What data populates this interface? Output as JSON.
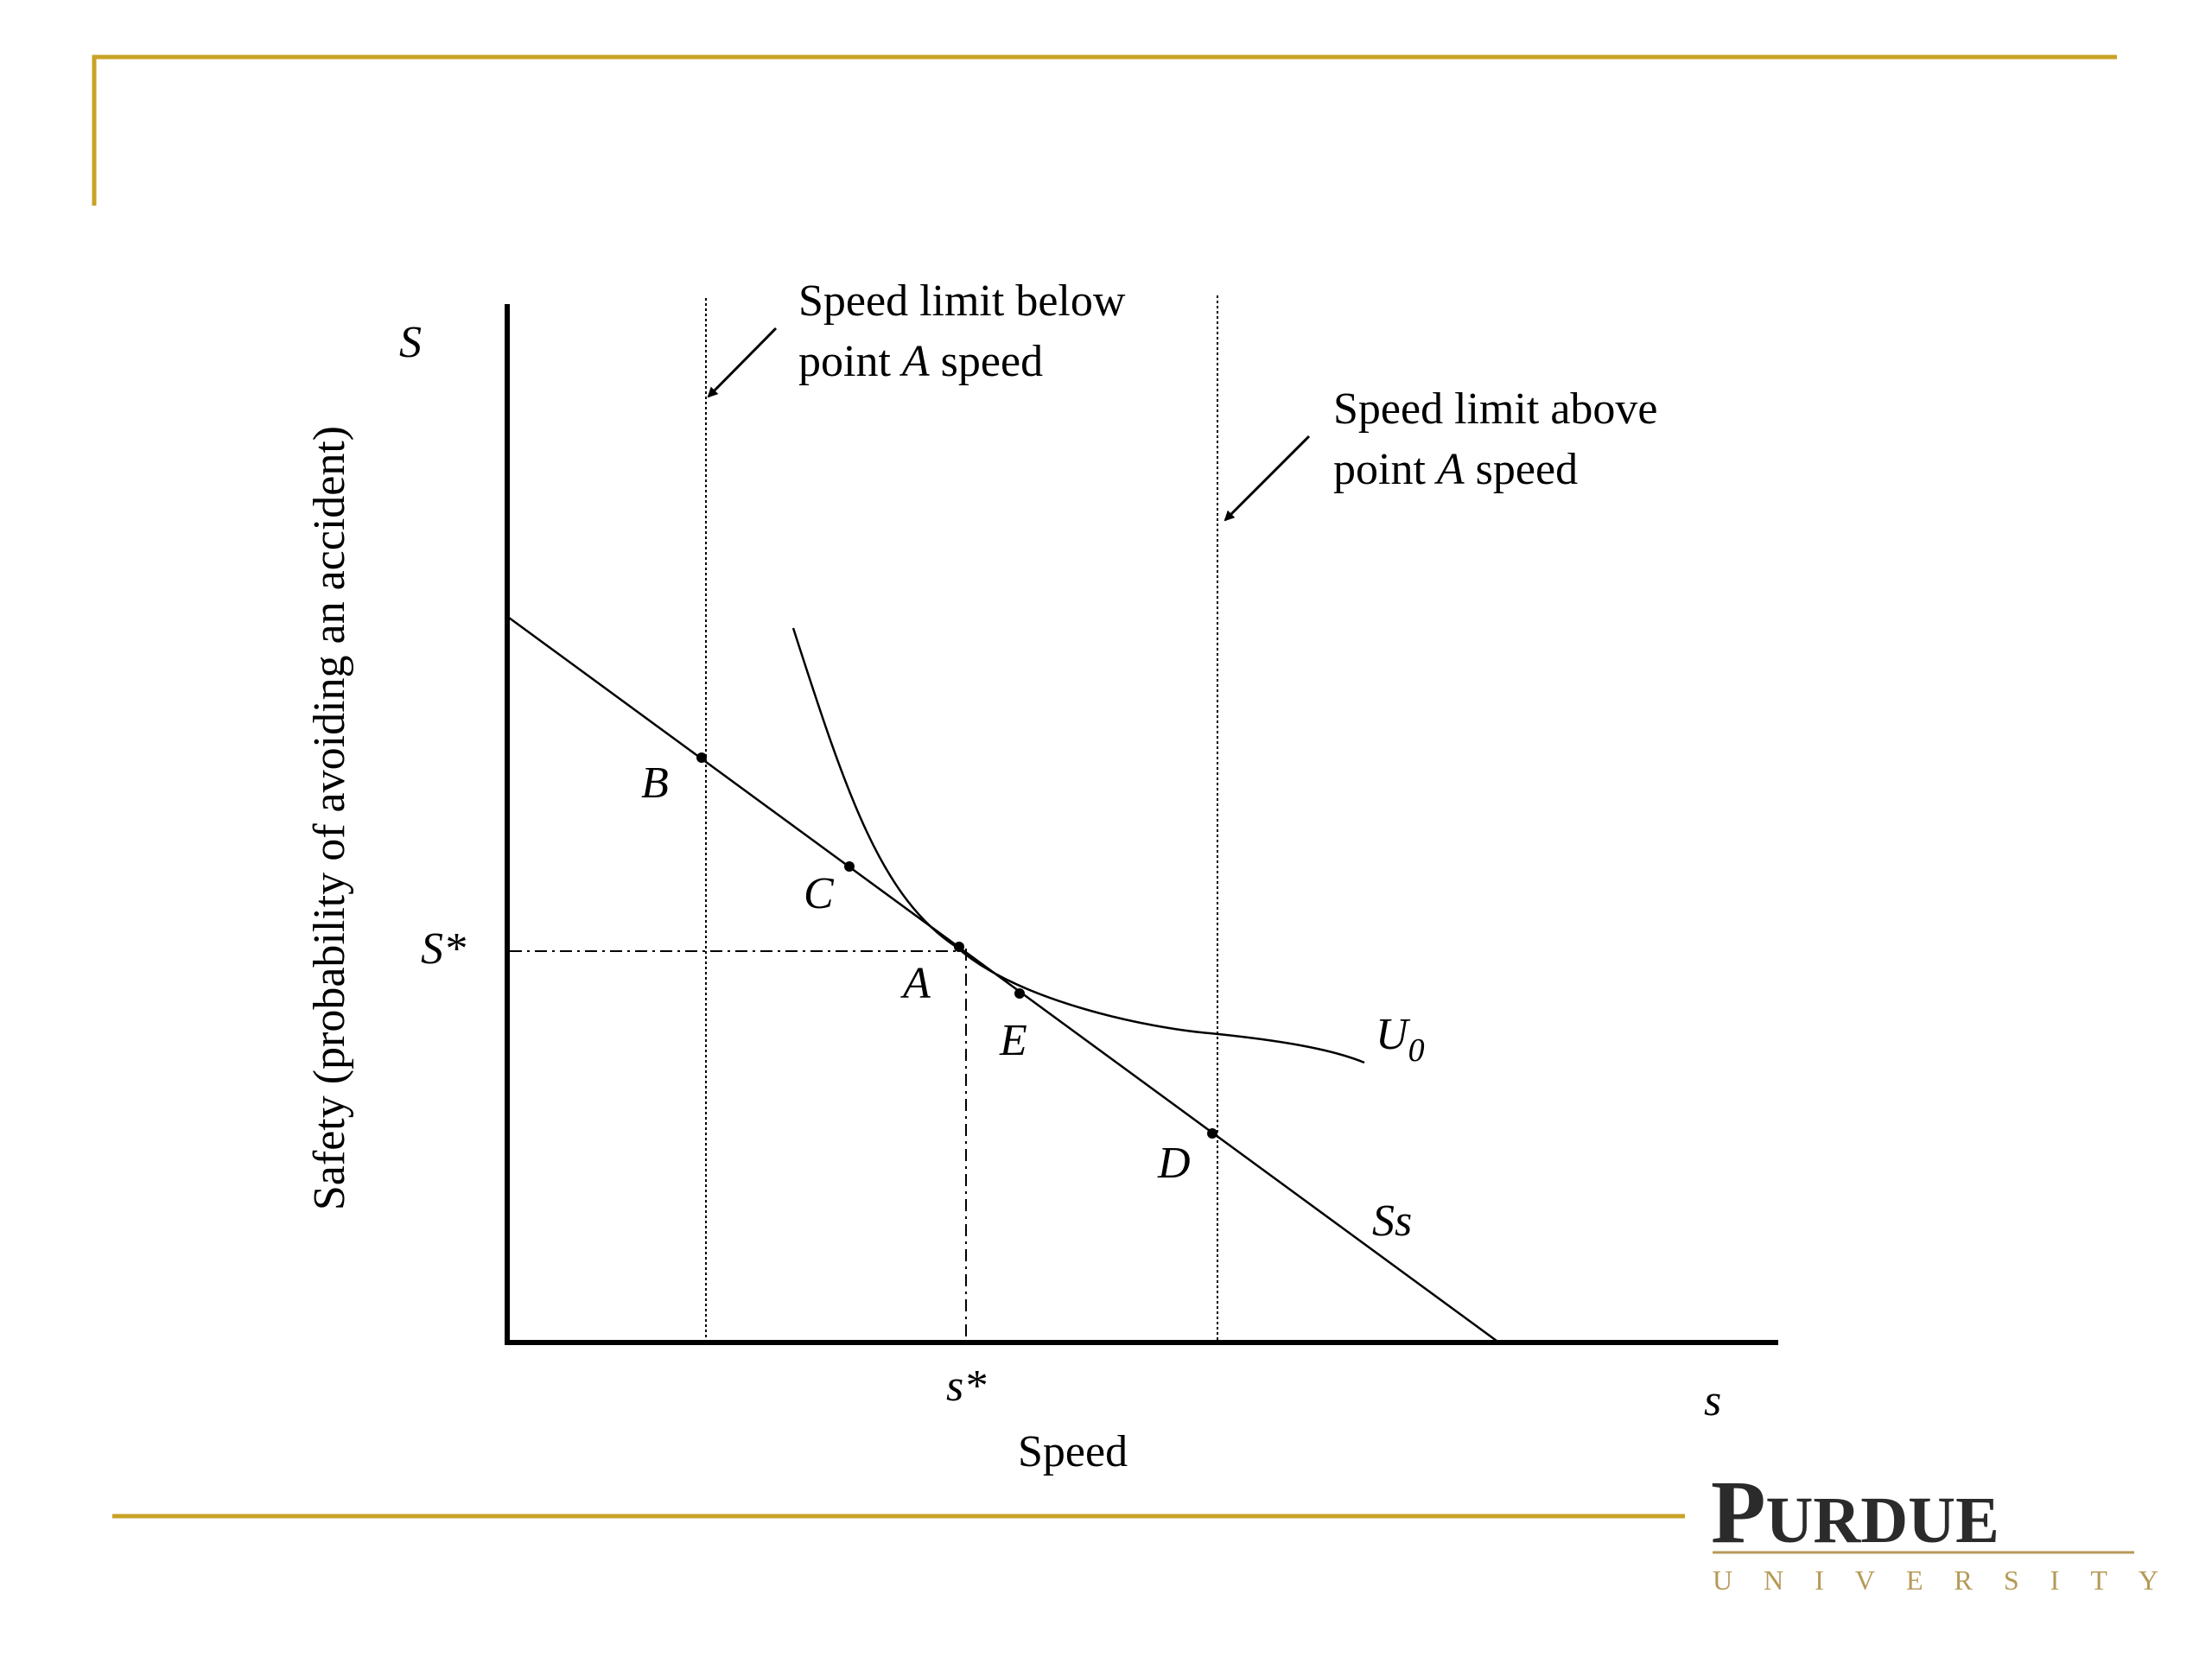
{
  "colors": {
    "gold": "#c9a227",
    "logo_dark": "#2b2b2b",
    "logo_gold": "#b59a57",
    "ink": "#000000"
  },
  "diagram": {
    "y_axis_symbol": "S",
    "y_axis_title": "Safety (probability of avoiding an accident)",
    "x_axis_symbol": "s",
    "x_axis_title": "Speed",
    "s_star_label": "s*",
    "S_star_label": "S*",
    "annotation_below": {
      "line1": "Speed limit below",
      "line2_prefix": "point ",
      "line2_italic": "A",
      "line2_suffix": " speed"
    },
    "annotation_above": {
      "line1": "Speed limit above",
      "line2_prefix": "point ",
      "line2_italic": "A",
      "line2_suffix": " speed"
    },
    "points": {
      "A": "A",
      "B": "B",
      "C": "C",
      "D": "D",
      "E": "E"
    },
    "curve_label_U": "U",
    "curve_label_U_sub": "0",
    "line_label": "Ss"
  },
  "logo": {
    "first_letter": "P",
    "rest": "URDUE",
    "subtitle": "UNIVERSITY"
  }
}
